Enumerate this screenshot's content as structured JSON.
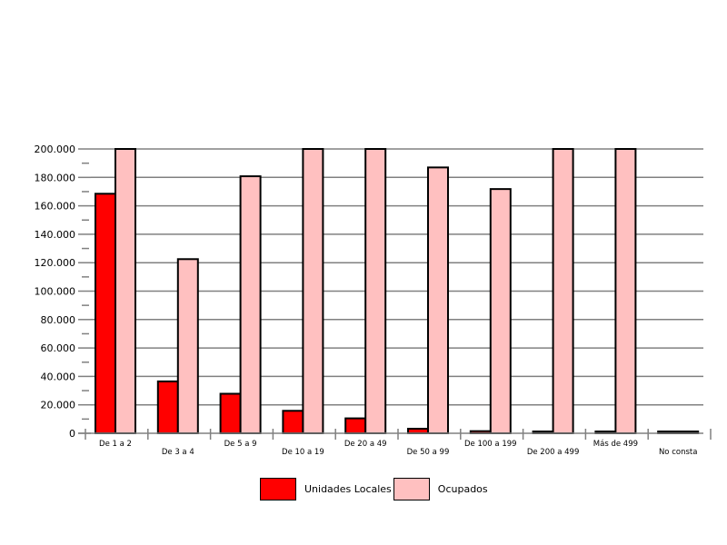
{
  "chart_data": {
    "type": "bar",
    "title": "",
    "xlabel": "",
    "ylabel": "",
    "ylim": [
      0,
      200000
    ],
    "yticks": [
      0,
      20000,
      40000,
      60000,
      80000,
      100000,
      120000,
      140000,
      160000,
      180000,
      200000
    ],
    "ytick_labels": [
      "0",
      "20.000",
      "40.000",
      "60.000",
      "80.000",
      "100.000",
      "120.000",
      "140.000",
      "160.000",
      "180.000",
      "200.000"
    ],
    "grid": true,
    "legend_position": "bottom-center",
    "categories": [
      "De 1 a 2",
      "De 3 a 4",
      "De 5 a 9",
      "De 10 a 19",
      "De 20 a 49",
      "De 50 a 99",
      "De 100 a 199",
      "De 200 a 499",
      "Más de 499",
      "No consta"
    ],
    "series": [
      {
        "name": "Unidades Locales",
        "color": "#ff0000",
        "values": [
          168500,
          36500,
          27800,
          15800,
          10500,
          3200,
          1500,
          700,
          400,
          1200
        ]
      },
      {
        "name": "Ocupados",
        "color": "#ffc0c0",
        "values": [
          200000,
          122500,
          180800,
          200000,
          200000,
          187000,
          171800,
          200000,
          200000,
          800
        ]
      }
    ]
  }
}
